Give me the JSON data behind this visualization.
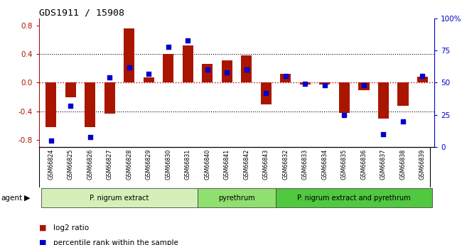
{
  "title": "GDS1911 / 15908",
  "samples": [
    "GSM66824",
    "GSM66825",
    "GSM66826",
    "GSM66827",
    "GSM66828",
    "GSM66829",
    "GSM66830",
    "GSM66831",
    "GSM66840",
    "GSM66841",
    "GSM66842",
    "GSM66843",
    "GSM66832",
    "GSM66833",
    "GSM66834",
    "GSM66835",
    "GSM66836",
    "GSM66837",
    "GSM66838",
    "GSM66839"
  ],
  "log2_ratio": [
    -0.62,
    -0.2,
    -0.62,
    -0.43,
    0.76,
    0.07,
    0.4,
    0.52,
    0.26,
    0.31,
    0.38,
    -0.3,
    0.12,
    -0.03,
    -0.03,
    -0.42,
    -0.1,
    -0.5,
    -0.32,
    0.08
  ],
  "percentile": [
    5,
    32,
    8,
    54,
    62,
    57,
    78,
    83,
    60,
    58,
    60,
    42,
    55,
    49,
    48,
    25,
    48,
    10,
    20,
    55
  ],
  "groups": [
    {
      "label": "P. nigrum extract",
      "start": 0,
      "end": 8,
      "color": "#d4f0b8"
    },
    {
      "label": "pyrethrum",
      "start": 8,
      "end": 12,
      "color": "#90e070"
    },
    {
      "label": "P. nigrum extract and pyrethrum",
      "start": 12,
      "end": 20,
      "color": "#50c840"
    }
  ],
  "bar_color": "#aa1500",
  "dot_color": "#0000cc",
  "ylim_left": [
    -0.9,
    0.9
  ],
  "ylim_right": [
    0,
    100
  ],
  "left_ticks": [
    -0.8,
    -0.4,
    0.0,
    0.4,
    0.8
  ],
  "right_ticks": [
    0,
    25,
    50,
    75,
    100
  ],
  "right_tick_labels": [
    "0",
    "25",
    "50",
    "75",
    "100%"
  ],
  "dotted_lines_black": [
    0.4,
    -0.4
  ],
  "zero_line_color": "#cc0000",
  "background_color": "#ffffff",
  "xlabel_bg_color": "#cccccc",
  "agent_label": "agent",
  "legend_items": [
    {
      "label": "log2 ratio",
      "color": "#aa1500"
    },
    {
      "label": "percentile rank within the sample",
      "color": "#0000cc"
    }
  ]
}
